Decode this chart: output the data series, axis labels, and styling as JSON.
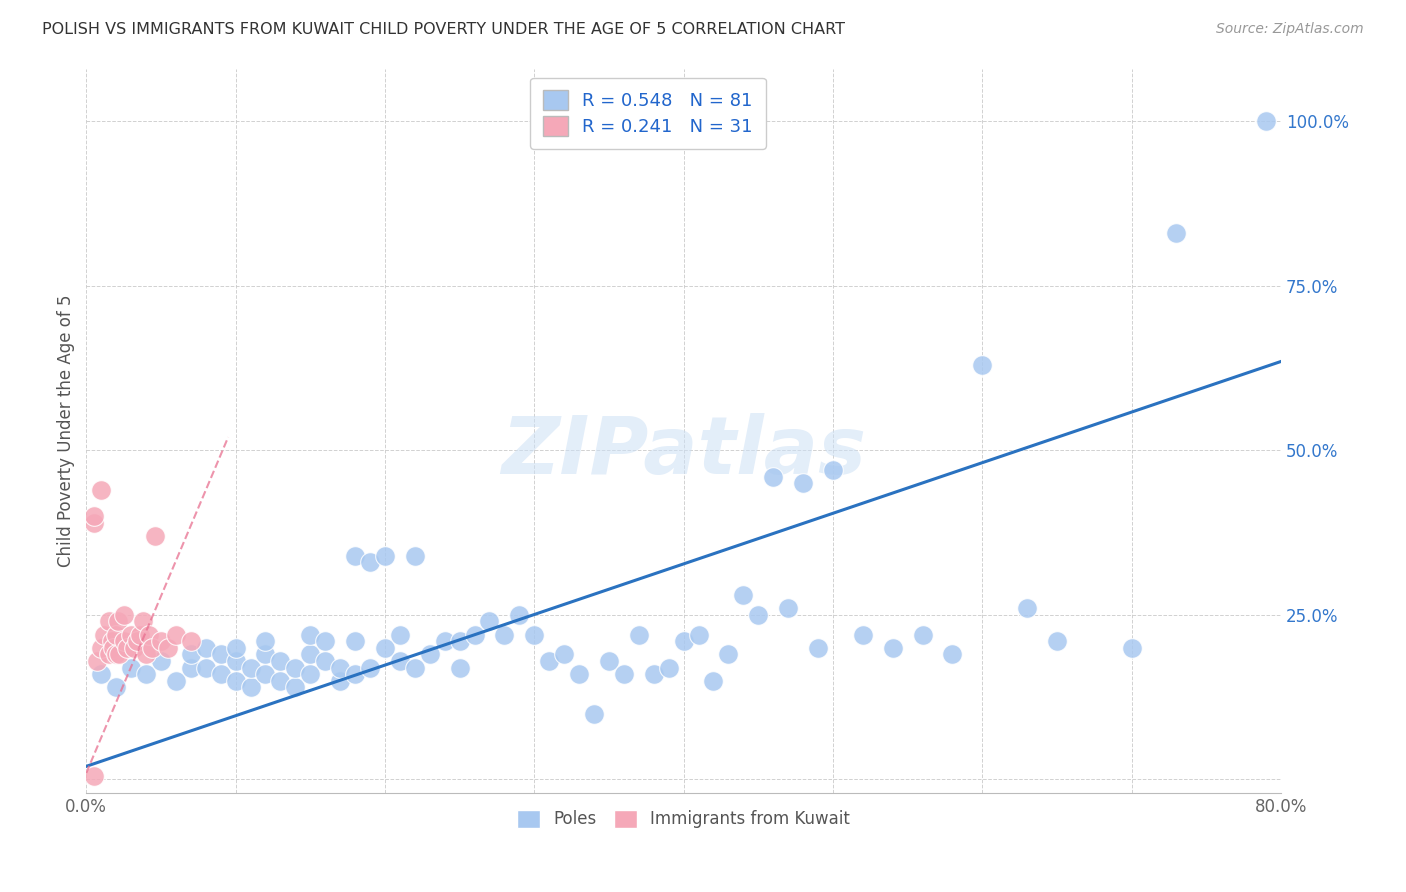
{
  "title": "POLISH VS IMMIGRANTS FROM KUWAIT CHILD POVERTY UNDER THE AGE OF 5 CORRELATION CHART",
  "source": "Source: ZipAtlas.com",
  "ylabel": "Child Poverty Under the Age of 5",
  "xlim": [
    0.0,
    0.8
  ],
  "ylim": [
    -0.02,
    1.08
  ],
  "xticks": [
    0.0,
    0.1,
    0.2,
    0.3,
    0.4,
    0.5,
    0.6,
    0.7,
    0.8
  ],
  "xticklabels": [
    "0.0%",
    "",
    "",
    "",
    "",
    "",
    "",
    "",
    "80.0%"
  ],
  "yticks": [
    0.0,
    0.25,
    0.5,
    0.75,
    1.0
  ],
  "yticklabels": [
    "",
    "25.0%",
    "50.0%",
    "75.0%",
    "100.0%"
  ],
  "blue_R": 0.548,
  "blue_N": 81,
  "pink_R": 0.241,
  "pink_N": 31,
  "blue_color": "#a8c8f0",
  "blue_line_color": "#2a72c0",
  "pink_color": "#f5a8b8",
  "pink_line_color": "#e87090",
  "grid_color": "#cccccc",
  "watermark": "ZIPatlas",
  "blue_line_x0": 0.0,
  "blue_line_y0": 0.02,
  "blue_line_x1": 0.8,
  "blue_line_y1": 0.635,
  "pink_line_x0": 0.0,
  "pink_line_y0": 0.01,
  "pink_line_x1": 0.095,
  "pink_line_y1": 0.52,
  "blue_scatter_x": [
    0.01,
    0.02,
    0.03,
    0.04,
    0.05,
    0.06,
    0.07,
    0.07,
    0.08,
    0.08,
    0.09,
    0.09,
    0.1,
    0.1,
    0.1,
    0.11,
    0.11,
    0.12,
    0.12,
    0.12,
    0.13,
    0.13,
    0.14,
    0.14,
    0.15,
    0.15,
    0.15,
    0.16,
    0.16,
    0.17,
    0.17,
    0.18,
    0.18,
    0.18,
    0.19,
    0.19,
    0.2,
    0.2,
    0.21,
    0.21,
    0.22,
    0.22,
    0.23,
    0.24,
    0.25,
    0.25,
    0.26,
    0.27,
    0.28,
    0.29,
    0.3,
    0.31,
    0.32,
    0.33,
    0.34,
    0.35,
    0.36,
    0.37,
    0.38,
    0.39,
    0.4,
    0.41,
    0.42,
    0.43,
    0.44,
    0.45,
    0.46,
    0.47,
    0.48,
    0.49,
    0.5,
    0.52,
    0.54,
    0.56,
    0.58,
    0.6,
    0.63,
    0.65,
    0.7,
    0.73,
    0.79
  ],
  "blue_scatter_y": [
    0.16,
    0.14,
    0.17,
    0.16,
    0.18,
    0.15,
    0.17,
    0.19,
    0.17,
    0.2,
    0.16,
    0.19,
    0.15,
    0.18,
    0.2,
    0.14,
    0.17,
    0.16,
    0.19,
    0.21,
    0.15,
    0.18,
    0.14,
    0.17,
    0.16,
    0.19,
    0.22,
    0.18,
    0.21,
    0.15,
    0.17,
    0.34,
    0.16,
    0.21,
    0.17,
    0.33,
    0.2,
    0.34,
    0.18,
    0.22,
    0.17,
    0.34,
    0.19,
    0.21,
    0.21,
    0.17,
    0.22,
    0.24,
    0.22,
    0.25,
    0.22,
    0.18,
    0.19,
    0.16,
    0.1,
    0.18,
    0.16,
    0.22,
    0.16,
    0.17,
    0.21,
    0.22,
    0.15,
    0.19,
    0.28,
    0.25,
    0.46,
    0.26,
    0.45,
    0.2,
    0.47,
    0.22,
    0.2,
    0.22,
    0.19,
    0.63,
    0.26,
    0.21,
    0.2,
    0.83,
    1.0
  ],
  "pink_scatter_x": [
    0.005,
    0.005,
    0.007,
    0.01,
    0.01,
    0.012,
    0.015,
    0.015,
    0.017,
    0.018,
    0.02,
    0.02,
    0.021,
    0.022,
    0.025,
    0.025,
    0.027,
    0.03,
    0.032,
    0.034,
    0.036,
    0.038,
    0.04,
    0.042,
    0.044,
    0.046,
    0.05,
    0.055,
    0.06,
    0.07,
    0.005
  ],
  "pink_scatter_y": [
    0.005,
    0.39,
    0.18,
    0.2,
    0.44,
    0.22,
    0.19,
    0.24,
    0.21,
    0.2,
    0.19,
    0.22,
    0.24,
    0.19,
    0.21,
    0.25,
    0.2,
    0.22,
    0.2,
    0.21,
    0.22,
    0.24,
    0.19,
    0.22,
    0.2,
    0.37,
    0.21,
    0.2,
    0.22,
    0.21,
    0.4
  ]
}
